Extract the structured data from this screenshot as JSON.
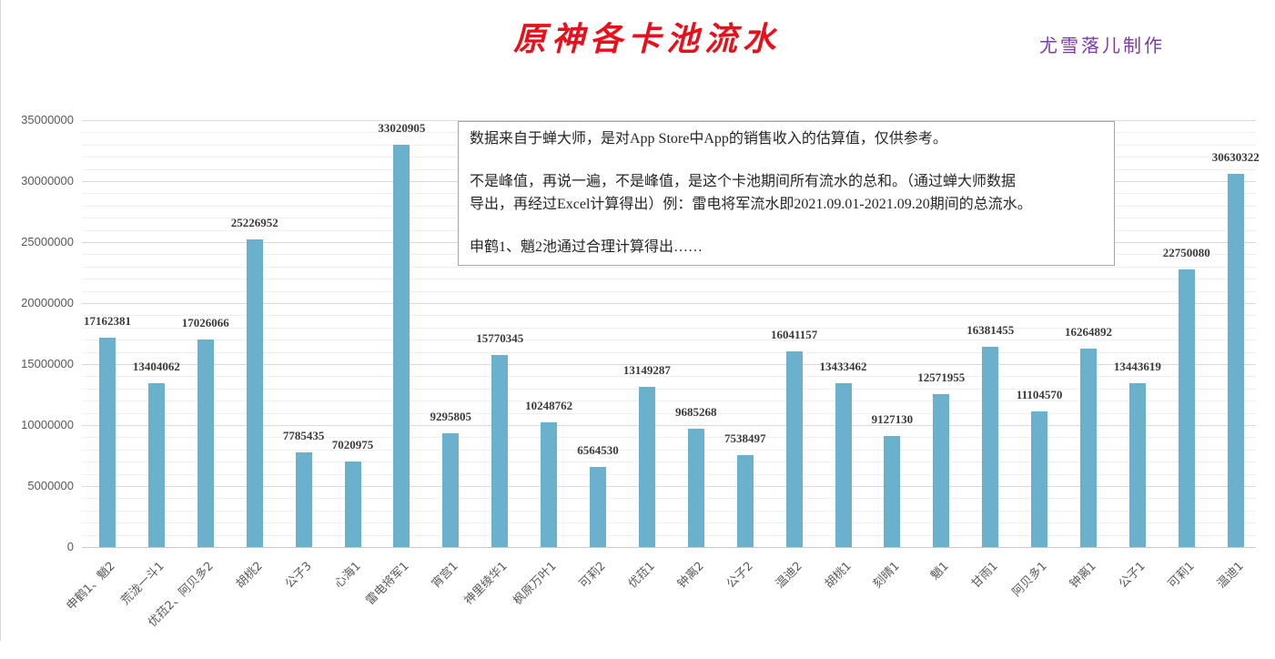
{
  "header": {
    "title": "原神各卡池流水",
    "author": "尤雪落儿制作"
  },
  "note": {
    "line1": "数据来自于蝉大师，是对App Store中App的销售收入的估算值，仅供参考。",
    "line2": "不是峰值，再说一遍，不是峰值，是这个卡池期间所有流水的总和。（通过蝉大师数据",
    "line3": "导出，再经过Excel计算得出）例：雷电将军流水即2021.09.01-2021.09.20期间的总流水。",
    "line4": "申鹤1、魈2池通过合理计算得出……"
  },
  "colors": {
    "bar": "#6bb0cd",
    "title": "#e8101a",
    "author": "#7b3bb0"
  },
  "chart_data": {
    "type": "bar",
    "title": "原神各卡池流水",
    "subtitle": "尤雪落儿制作",
    "xlabel": "",
    "ylabel": "",
    "ylim": [
      0,
      35000000
    ],
    "y_ticks": [
      "0",
      "5000000",
      "10000000",
      "15000000",
      "20000000",
      "25000000",
      "30000000",
      "35000000"
    ],
    "grid": true,
    "legend": "none",
    "categories": [
      "申鹤1、魈2",
      "荒泷一斗1",
      "优菈2、阿贝多2",
      "胡桃2",
      "公子3",
      "心海1",
      "雷电将军1",
      "宵宫1",
      "神里绫华1",
      "枫原万叶1",
      "可莉2",
      "优菈1",
      "钟离2",
      "公子2",
      "温迪2",
      "胡桃1",
      "刻晴1",
      "魈1",
      "甘雨1",
      "阿贝多1",
      "钟离1",
      "公子1",
      "可莉1",
      "温迪1"
    ],
    "values": [
      17162381,
      13404062,
      17026066,
      25226952,
      7785435,
      7020975,
      33020905,
      9295805,
      15770345,
      10248762,
      6564530,
      13149287,
      9685268,
      7538497,
      16041157,
      13433462,
      9127130,
      12571955,
      16381455,
      11104570,
      16264892,
      13443619,
      22750080,
      30630322
    ],
    "annotations": [
      "数据来自于蝉大师，是对App Store中App的销售收入的估算值，仅供参考。",
      "不是峰值，再说一遍，不是峰值，是这个卡池期间所有流水的总和。（通过蝉大师数据导出，再经过Excel计算得出）例：雷电将军流水即2021.09.01-2021.09.20期间的总流水。",
      "申鹤1、魈2池通过合理计算得出……"
    ]
  }
}
